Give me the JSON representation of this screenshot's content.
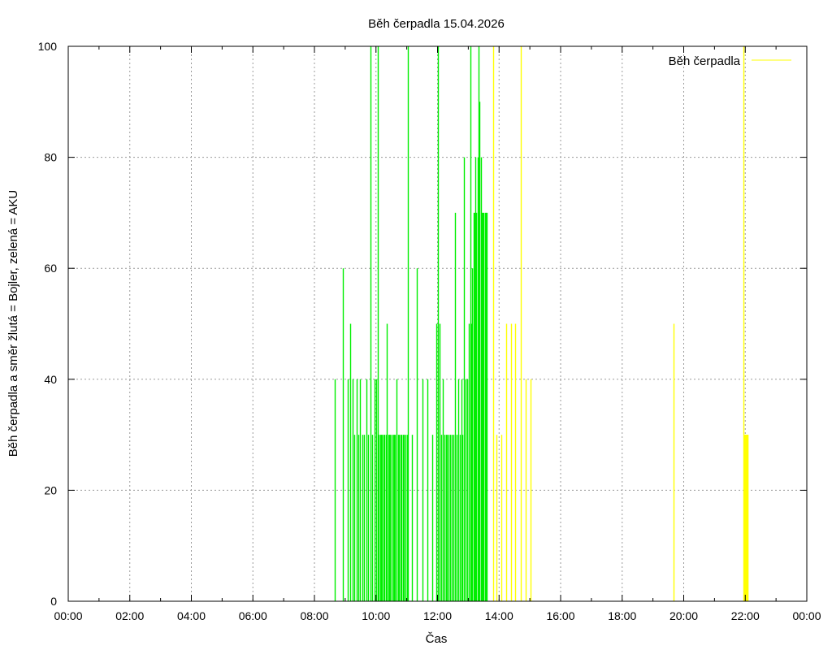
{
  "chart_data": {
    "type": "bar",
    "title": "Běh čerpadla 15.04.2026",
    "xlabel": "Čas",
    "ylabel": "Běh čerpadla a směr žlutá = Bojler, zelená = AKU",
    "xlim": [
      "00:00",
      "24:00"
    ],
    "ylim": [
      0,
      100
    ],
    "x_ticks": [
      "00:00",
      "02:00",
      "04:00",
      "06:00",
      "08:00",
      "10:00",
      "12:00",
      "14:00",
      "16:00",
      "18:00",
      "20:00",
      "22:00",
      "00:00"
    ],
    "y_ticks": [
      "0",
      "20",
      "40",
      "60",
      "80",
      "100"
    ],
    "grid": true,
    "legend_position": "top-right",
    "legend": [
      {
        "name": "Běh čerpadla",
        "color": "#ffff00"
      }
    ],
    "colors": {
      "AKU": "#00ee00",
      "Bojler": "#ffff00"
    },
    "series": [
      {
        "direction": "AKU",
        "color": "#00ee00",
        "points": [
          [
            "08:40",
            40
          ],
          [
            "08:55",
            60
          ],
          [
            "09:05",
            40
          ],
          [
            "09:10",
            50
          ],
          [
            "09:14",
            40
          ],
          [
            "09:18",
            30
          ],
          [
            "09:22",
            40
          ],
          [
            "09:25",
            30
          ],
          [
            "09:29",
            40
          ],
          [
            "09:33",
            30
          ],
          [
            "09:37",
            30
          ],
          [
            "09:41",
            40
          ],
          [
            "09:45",
            30
          ],
          [
            "09:50",
            100
          ],
          [
            "09:53",
            30
          ],
          [
            "09:57",
            40
          ],
          [
            "10:00",
            40
          ],
          [
            "10:03",
            100
          ],
          [
            "10:05",
            30
          ],
          [
            "10:08",
            30
          ],
          [
            "10:10",
            30
          ],
          [
            "10:12",
            30
          ],
          [
            "10:14",
            30
          ],
          [
            "10:17",
            30
          ],
          [
            "10:19",
            30
          ],
          [
            "10:21",
            50
          ],
          [
            "10:24",
            30
          ],
          [
            "10:26",
            30
          ],
          [
            "10:28",
            30
          ],
          [
            "10:31",
            30
          ],
          [
            "10:33",
            30
          ],
          [
            "10:35",
            30
          ],
          [
            "10:37",
            30
          ],
          [
            "10:40",
            40
          ],
          [
            "10:43",
            30
          ],
          [
            "10:45",
            30
          ],
          [
            "10:48",
            30
          ],
          [
            "10:50",
            30
          ],
          [
            "10:52",
            30
          ],
          [
            "10:55",
            30
          ],
          [
            "10:57",
            30
          ],
          [
            "11:00",
            30
          ],
          [
            "11:02",
            100
          ],
          [
            "11:10",
            30
          ],
          [
            "11:20",
            60
          ],
          [
            "11:30",
            40
          ],
          [
            "11:40",
            40
          ],
          [
            "11:50",
            30
          ],
          [
            "11:58",
            50
          ],
          [
            "12:01",
            100
          ],
          [
            "12:04",
            50
          ],
          [
            "12:07",
            30
          ],
          [
            "12:10",
            40
          ],
          [
            "12:13",
            30
          ],
          [
            "12:16",
            30
          ],
          [
            "12:19",
            30
          ],
          [
            "12:22",
            30
          ],
          [
            "12:25",
            30
          ],
          [
            "12:28",
            30
          ],
          [
            "12:31",
            30
          ],
          [
            "12:34",
            70
          ],
          [
            "12:37",
            30
          ],
          [
            "12:40",
            40
          ],
          [
            "12:43",
            30
          ],
          [
            "12:46",
            40
          ],
          [
            "12:49",
            30
          ],
          [
            "12:52",
            80
          ],
          [
            "12:55",
            40
          ],
          [
            "12:58",
            40
          ],
          [
            "13:01",
            50
          ],
          [
            "13:04",
            100
          ],
          [
            "13:06",
            50
          ],
          [
            "13:08",
            60
          ],
          [
            "13:10",
            70
          ],
          [
            "13:12",
            70
          ],
          [
            "13:14",
            80
          ],
          [
            "13:16",
            70
          ],
          [
            "13:18",
            80
          ],
          [
            "13:20",
            100
          ],
          [
            "13:22",
            90
          ],
          [
            "13:24",
            80
          ],
          [
            "13:26",
            70
          ],
          [
            "13:28",
            70
          ],
          [
            "13:30",
            70
          ],
          [
            "13:32",
            70
          ],
          [
            "13:34",
            70
          ],
          [
            "13:36",
            70
          ]
        ]
      },
      {
        "direction": "Bojler",
        "color": "#ffff00",
        "points": [
          [
            "13:48",
            100
          ],
          [
            "13:55",
            30
          ],
          [
            "14:05",
            30
          ],
          [
            "14:14",
            50
          ],
          [
            "14:24",
            50
          ],
          [
            "14:32",
            50
          ],
          [
            "14:42",
            100
          ],
          [
            "14:52",
            40
          ],
          [
            "15:02",
            40
          ],
          [
            "19:40",
            50
          ],
          [
            "21:57",
            100
          ],
          [
            "21:58",
            30
          ],
          [
            "21:59",
            30
          ],
          [
            "22:00",
            30
          ],
          [
            "22:01",
            30
          ],
          [
            "22:02",
            30
          ],
          [
            "22:03",
            30
          ],
          [
            "22:04",
            30
          ],
          [
            "22:05",
            30
          ]
        ]
      }
    ]
  }
}
